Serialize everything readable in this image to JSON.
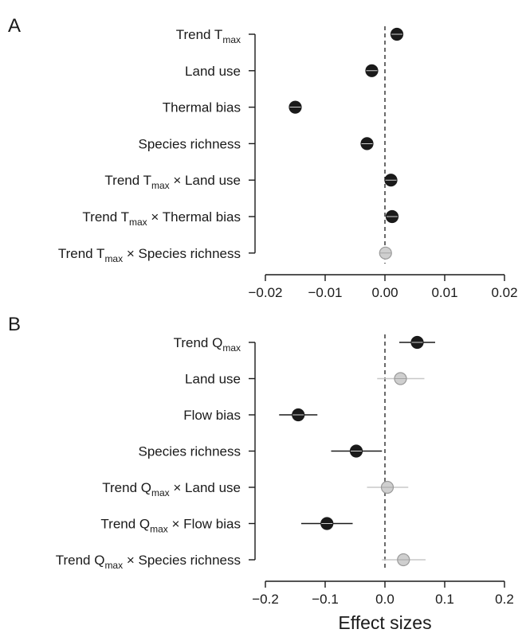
{
  "chart_data": [
    {
      "type": "scatter",
      "panel_label": "A",
      "xlabel": "",
      "xlim": [
        -0.02,
        0.02
      ],
      "xticks": [
        "−0.02",
        "−0.01",
        "0.00",
        "0.01",
        "0.02"
      ],
      "xtick_values": [
        -0.02,
        -0.01,
        0.0,
        0.01,
        0.02
      ],
      "reference_line": 0,
      "categories": [
        {
          "label": "Trend T",
          "sub": "max",
          "rest": "",
          "value": 0.002,
          "ci": [
            0.0012,
            0.0028
          ],
          "significant": true
        },
        {
          "label": "Land use",
          "sub": "",
          "rest": "",
          "value": -0.0022,
          "ci": [
            -0.003,
            -0.0014
          ],
          "significant": true
        },
        {
          "label": "Thermal bias",
          "sub": "",
          "rest": "",
          "value": -0.015,
          "ci": [
            -0.0158,
            -0.0142
          ],
          "significant": true
        },
        {
          "label": "Species richness",
          "sub": "",
          "rest": "",
          "value": -0.003,
          "ci": [
            -0.0038,
            -0.0022
          ],
          "significant": true
        },
        {
          "label": "Trend T",
          "sub": "max",
          "rest": " × Land use",
          "value": 0.001,
          "ci": [
            0.0003,
            0.0017
          ],
          "significant": true
        },
        {
          "label": "Trend T",
          "sub": "max",
          "rest": " × Thermal bias",
          "value": 0.0012,
          "ci": [
            0.0005,
            0.0019
          ],
          "significant": true
        },
        {
          "label": "Trend T",
          "sub": "max",
          "rest": " × Species richness",
          "value": 0.0001,
          "ci": [
            -0.0006,
            0.0008
          ],
          "significant": false
        }
      ]
    },
    {
      "type": "scatter",
      "panel_label": "B",
      "xlabel": "Effect sizes",
      "xlim": [
        -0.2,
        0.2
      ],
      "xticks": [
        "−0.2",
        "−0.1",
        "0.0",
        "0.1",
        "0.2"
      ],
      "xtick_values": [
        -0.2,
        -0.1,
        0.0,
        0.1,
        0.2
      ],
      "reference_line": 0,
      "categories": [
        {
          "label": "Trend Q",
          "sub": "max",
          "rest": "",
          "value": 0.054,
          "ci": [
            0.024,
            0.084
          ],
          "significant": true
        },
        {
          "label": "Land use",
          "sub": "",
          "rest": "",
          "value": 0.026,
          "ci": [
            -0.013,
            0.066
          ],
          "significant": false
        },
        {
          "label": "Flow bias",
          "sub": "",
          "rest": "",
          "value": -0.145,
          "ci": [
            -0.177,
            -0.113
          ],
          "significant": true
        },
        {
          "label": "Species richness",
          "sub": "",
          "rest": "",
          "value": -0.048,
          "ci": [
            -0.09,
            -0.005
          ],
          "significant": true
        },
        {
          "label": "Trend Q",
          "sub": "max",
          "rest": " × Land use",
          "value": 0.004,
          "ci": [
            -0.03,
            0.039
          ],
          "significant": false
        },
        {
          "label": "Trend Q",
          "sub": "max",
          "rest": " × Flow bias",
          "value": -0.097,
          "ci": [
            -0.14,
            -0.054
          ],
          "significant": true
        },
        {
          "label": "Trend Q",
          "sub": "max",
          "rest": " × Species richness",
          "value": 0.031,
          "ci": [
            -0.005,
            0.068
          ],
          "significant": false
        }
      ]
    }
  ],
  "colors": {
    "significant_fill": "#1a1a1a",
    "significant_line": "#1a1a1a",
    "nonsignificant_fill": "#cfcfcf",
    "nonsignificant_stroke": "#9a9a9a",
    "nonsignificant_line": "#c8c8c8",
    "axis": "#1a1a1a"
  }
}
